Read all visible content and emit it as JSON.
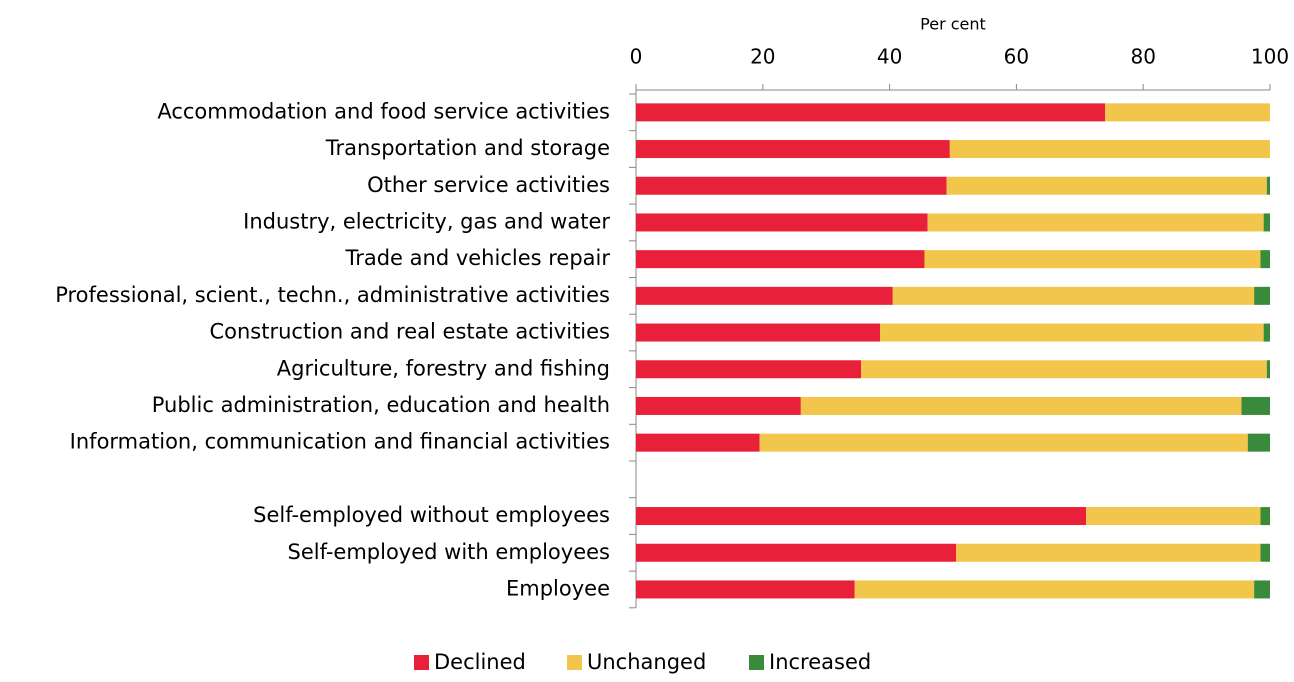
{
  "chart_data": {
    "type": "stacked_barh",
    "x_label": "Per cent",
    "categories": [
      "Accommodation and food service activities",
      "Transportation and storage",
      "Other service activities",
      "Industry, electricity, gas and water",
      "Trade and vehicles repair",
      "Professional, scient., techn., administrative activities",
      "Construction and real estate activities",
      "Agriculture, forestry and fishing",
      "Public administration, education and health",
      "Information, communication and financial activities",
      null,
      "Self-employed without employees",
      "Self-employed with employees",
      "Employee"
    ],
    "series": [
      {
        "name": "Declined",
        "color": "#e8203a",
        "values": [
          74,
          49.5,
          49,
          46,
          45.5,
          40.5,
          38.5,
          35.5,
          26,
          19.5,
          null,
          71,
          50.5,
          34.5
        ]
      },
      {
        "name": "Unchanged",
        "color": "#f2c54b",
        "values": [
          26,
          50.5,
          50.5,
          53,
          53,
          57,
          60.5,
          64,
          69.5,
          77,
          null,
          27.5,
          48,
          63
        ]
      },
      {
        "name": "Increased",
        "color": "#3a8a3c",
        "values": [
          0,
          0,
          0.5,
          1,
          1.5,
          2.5,
          1,
          0.5,
          4.5,
          3.5,
          null,
          1.5,
          1.5,
          2.5
        ]
      }
    ],
    "xlim": [
      0,
      100
    ],
    "xticks": [
      0,
      20,
      40,
      60,
      80,
      100
    ]
  }
}
